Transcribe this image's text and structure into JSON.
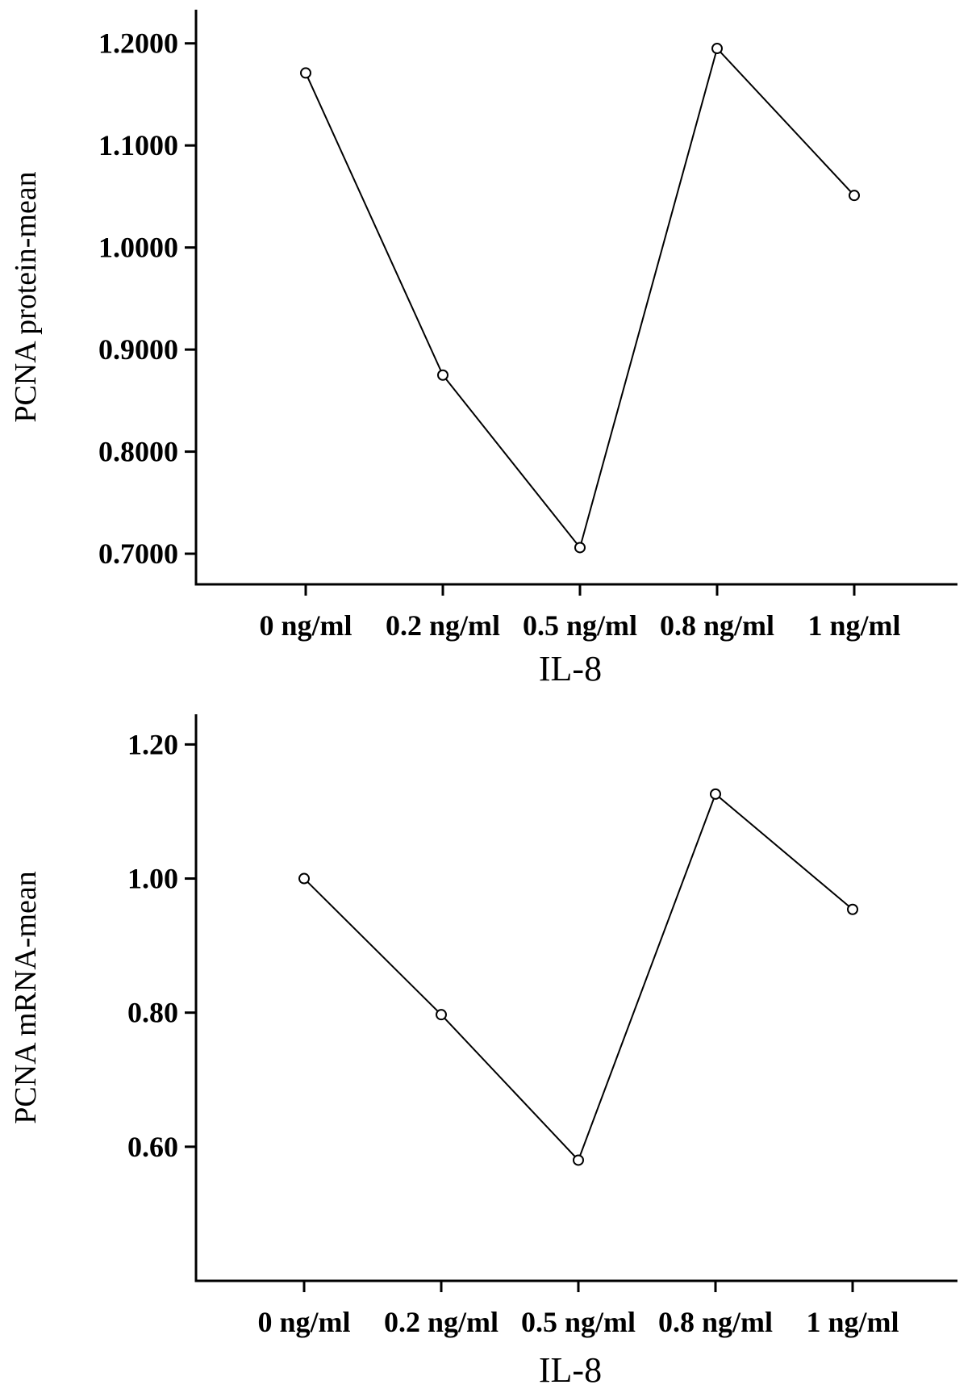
{
  "chart_data": [
    {
      "type": "line",
      "categories": [
        "0 ng/ml",
        "0.2 ng/ml",
        "0.5 ng/ml",
        "0.8 ng/ml",
        "1 ng/ml"
      ],
      "values": [
        1.171,
        0.875,
        0.706,
        1.195,
        1.051
      ],
      "xlabel": "IL-8",
      "ylabel": "PCNA protein-mean",
      "yticks": [
        "0.7000",
        "0.8000",
        "0.9000",
        "1.0000",
        "1.1000",
        "1.2000"
      ],
      "ylim": [
        0.67,
        1.233
      ],
      "grid": false
    },
    {
      "type": "line",
      "categories": [
        "0 ng/ml",
        "0.2 ng/ml",
        "0.5 ng/ml",
        "0.8 ng/ml",
        "1 ng/ml"
      ],
      "values": [
        1.0,
        0.797,
        0.58,
        1.126,
        0.954
      ],
      "xlabel": "IL-8",
      "ylabel": "PCNA mRNA-mean",
      "yticks": [
        "0.60",
        "0.80",
        "1.00",
        "1.20"
      ],
      "ylim": [
        0.4,
        1.245
      ],
      "grid": false
    }
  ]
}
